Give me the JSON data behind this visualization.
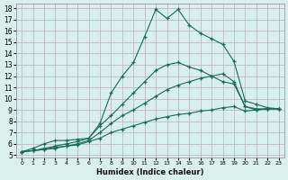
{
  "xlabel": "Humidex (Indice chaleur)",
  "xlim": [
    -0.5,
    23.5
  ],
  "ylim": [
    4.8,
    18.4
  ],
  "xticks": [
    0,
    1,
    2,
    3,
    4,
    5,
    6,
    7,
    8,
    9,
    10,
    11,
    12,
    13,
    14,
    15,
    16,
    17,
    18,
    19,
    20,
    21,
    22,
    23
  ],
  "yticks": [
    5,
    6,
    7,
    8,
    9,
    10,
    11,
    12,
    13,
    14,
    15,
    16,
    17,
    18
  ],
  "bg_color": "#d8f0ec",
  "grid_color": "#c0b8c8",
  "line_color": "#1a6b5a",
  "lines": [
    {
      "x": [
        0,
        1,
        2,
        3,
        4,
        5,
        6,
        7,
        8,
        9,
        10,
        11,
        12,
        13,
        14,
        15,
        16,
        17,
        18,
        19,
        20,
        21,
        22,
        23
      ],
      "y": [
        5.3,
        5.6,
        6.0,
        6.3,
        6.3,
        6.4,
        6.5,
        7.8,
        10.5,
        12.0,
        13.2,
        15.5,
        17.9,
        17.1,
        17.9,
        16.5,
        15.8,
        15.3,
        14.8,
        13.3,
        9.8,
        9.5,
        9.2,
        9.1
      ]
    },
    {
      "x": [
        0,
        1,
        2,
        3,
        4,
        5,
        6,
        7,
        8,
        9,
        10,
        11,
        12,
        13,
        14,
        15,
        16,
        17,
        18,
        19,
        20,
        21,
        22,
        23
      ],
      "y": [
        5.3,
        5.4,
        5.6,
        5.8,
        6.0,
        6.2,
        6.5,
        7.6,
        8.5,
        9.5,
        10.5,
        11.5,
        12.5,
        13.0,
        13.2,
        12.8,
        12.5,
        12.0,
        11.5,
        11.3,
        9.3,
        9.0,
        9.1,
        9.1
      ]
    },
    {
      "x": [
        0,
        1,
        2,
        3,
        4,
        5,
        6,
        7,
        8,
        9,
        10,
        11,
        12,
        13,
        14,
        15,
        16,
        17,
        18,
        19,
        20,
        21,
        22,
        23
      ],
      "y": [
        5.3,
        5.4,
        5.5,
        5.7,
        5.8,
        6.0,
        6.3,
        7.0,
        7.8,
        8.5,
        9.0,
        9.6,
        10.2,
        10.8,
        11.2,
        11.5,
        11.8,
        12.0,
        12.2,
        11.5,
        9.3,
        9.1,
        9.1,
        9.1
      ]
    },
    {
      "x": [
        0,
        1,
        2,
        3,
        4,
        5,
        6,
        7,
        8,
        9,
        10,
        11,
        12,
        13,
        14,
        15,
        16,
        17,
        18,
        19,
        20,
        21,
        22,
        23
      ],
      "y": [
        5.3,
        5.4,
        5.5,
        5.6,
        5.8,
        5.9,
        6.2,
        6.5,
        7.0,
        7.3,
        7.6,
        7.9,
        8.2,
        8.4,
        8.6,
        8.7,
        8.9,
        9.0,
        9.2,
        9.3,
        8.9,
        9.0,
        9.1,
        9.1
      ]
    }
  ]
}
